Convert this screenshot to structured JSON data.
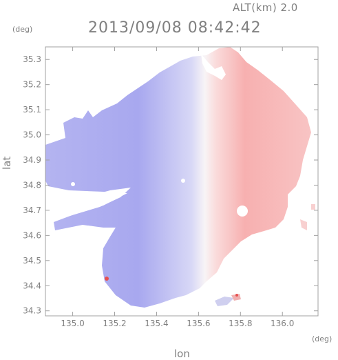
{
  "header": {
    "altitude": "ALT(km) 2.0",
    "timestamp": "2013/09/08 08:42:42"
  },
  "chart_data": {
    "type": "heatmap",
    "xlabel": "lon",
    "ylabel": "lat",
    "x_unit": "(deg)",
    "y_unit": "(deg)",
    "xlim": [
      134.87,
      136.17
    ],
    "ylim": [
      34.28,
      35.35
    ],
    "x_ticks": [
      135.0,
      135.2,
      135.4,
      135.6,
      135.8,
      136.0
    ],
    "x_tick_labels": [
      "135.0",
      "135.2",
      "135.4",
      "135.6",
      "135.8",
      "136.0"
    ],
    "y_ticks": [
      34.3,
      34.4,
      34.5,
      34.6,
      34.7,
      34.8,
      34.9,
      35.0,
      35.1,
      35.2,
      35.3
    ],
    "y_tick_labels": [
      "34.3",
      "34.4",
      "34.5",
      "34.6",
      "34.7",
      "34.8",
      "34.9",
      "35.0",
      "35.1",
      "35.2",
      "35.3"
    ],
    "radar_center": {
      "lon": 135.52,
      "lat": 34.82
    },
    "grid": false,
    "colors": {
      "approaching": "#aaaaf2",
      "receding": "#f6aaaa",
      "near_zero": "#f4f4fb",
      "strong_receding": "#e65050",
      "axis": "#a0a0a0"
    }
  }
}
